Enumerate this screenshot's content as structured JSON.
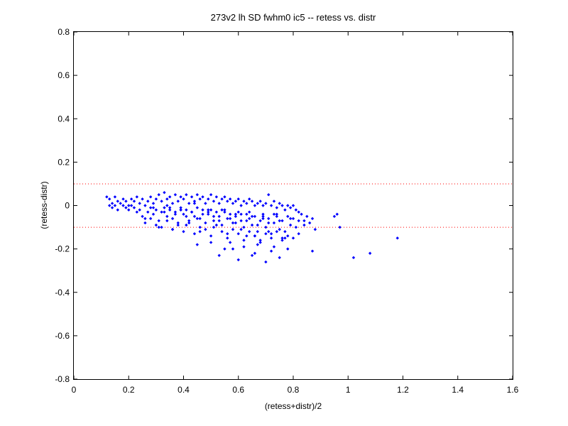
{
  "chart_data": {
    "type": "scatter",
    "title": "273v2 lh SD fwhm0 ic5 -- retess vs. distr",
    "xlabel": "(retess+distr)/2",
    "ylabel": "(retess-distr)",
    "xlim": [
      0,
      1.6
    ],
    "ylim": [
      -0.8,
      0.8
    ],
    "xticks": [
      "0",
      "0.2",
      "0.4",
      "0.6",
      "0.8",
      "1",
      "1.2",
      "1.4",
      "1.6"
    ],
    "yticks": [
      "0.8",
      "0.6",
      "0.4",
      "0.2",
      "0",
      "-0.2",
      "-0.4",
      "-0.6",
      "-0.8"
    ],
    "grid": false,
    "marker_color": "#0000ff",
    "reference_line_color": "#ff0000",
    "reference_lines": [
      0.1,
      -0.1
    ],
    "series": [
      {
        "x": [
          0.12,
          0.13,
          0.13,
          0.14,
          0.14,
          0.15,
          0.15,
          0.16,
          0.16,
          0.17,
          0.18,
          0.18,
          0.19,
          0.19,
          0.2,
          0.2,
          0.21,
          0.21,
          0.22,
          0.22,
          0.23,
          0.23,
          0.24,
          0.24,
          0.25,
          0.25,
          0.26,
          0.26,
          0.27,
          0.27,
          0.28,
          0.28,
          0.29,
          0.29,
          0.3,
          0.3,
          0.31,
          0.31,
          0.32,
          0.32,
          0.33,
          0.33,
          0.34,
          0.34,
          0.35,
          0.35,
          0.36,
          0.36,
          0.37,
          0.37,
          0.38,
          0.38,
          0.39,
          0.39,
          0.4,
          0.4,
          0.41,
          0.41,
          0.42,
          0.42,
          0.43,
          0.43,
          0.44,
          0.44,
          0.45,
          0.45,
          0.46,
          0.46,
          0.47,
          0.47,
          0.48,
          0.48,
          0.49,
          0.49,
          0.5,
          0.5,
          0.51,
          0.51,
          0.52,
          0.52,
          0.53,
          0.53,
          0.54,
          0.54,
          0.55,
          0.55,
          0.56,
          0.56,
          0.57,
          0.57,
          0.58,
          0.58,
          0.59,
          0.59,
          0.6,
          0.6,
          0.61,
          0.61,
          0.62,
          0.62,
          0.63,
          0.63,
          0.64,
          0.64,
          0.65,
          0.65,
          0.66,
          0.66,
          0.67,
          0.67,
          0.68,
          0.68,
          0.69,
          0.69,
          0.7,
          0.7,
          0.71,
          0.71,
          0.72,
          0.72,
          0.73,
          0.73,
          0.74,
          0.74,
          0.75,
          0.75,
          0.76,
          0.76,
          0.77,
          0.77,
          0.78,
          0.78,
          0.79,
          0.79,
          0.8,
          0.8,
          0.81,
          0.81,
          0.82,
          0.82,
          0.83,
          0.84,
          0.85,
          0.86,
          0.87,
          0.88,
          0.26,
          0.28,
          0.3,
          0.32,
          0.34,
          0.36,
          0.38,
          0.4,
          0.42,
          0.44,
          0.46,
          0.48,
          0.5,
          0.52,
          0.54,
          0.56,
          0.58,
          0.6,
          0.62,
          0.64,
          0.66,
          0.68,
          0.7,
          0.72,
          0.74,
          0.76,
          0.78,
          0.8,
          0.33,
          0.35,
          0.37,
          0.39,
          0.41,
          0.43,
          0.45,
          0.47,
          0.49,
          0.51,
          0.53,
          0.55,
          0.57,
          0.59,
          0.61,
          0.63,
          0.65,
          0.67,
          0.69,
          0.71,
          0.73,
          0.75,
          0.31,
          0.36,
          0.41,
          0.46,
          0.51,
          0.56,
          0.61,
          0.66,
          0.71,
          0.76,
          0.29,
          0.34,
          0.39,
          0.44,
          0.49,
          0.54,
          0.59,
          0.64,
          0.69,
          0.74,
          0.79,
          0.84,
          0.95,
          0.96,
          0.97,
          1.02,
          1.08,
          1.18,
          0.55,
          0.57,
          0.6,
          0.62,
          0.65,
          0.67,
          0.7,
          0.72,
          0.75,
          0.78,
          0.87,
          0.53,
          0.63,
          0.68,
          0.73,
          0.77,
          0.82,
          0.45,
          0.5,
          0.58,
          0.66
        ],
        "y": [
          0.04,
          0.0,
          0.03,
          0.01,
          -0.01,
          0.04,
          0.0,
          0.02,
          -0.02,
          0.01,
          0.0,
          0.03,
          -0.01,
          0.02,
          0.0,
          -0.02,
          0.03,
          0.0,
          -0.01,
          0.02,
          0.04,
          -0.03,
          0.01,
          -0.02,
          0.03,
          -0.05,
          0.0,
          -0.06,
          0.02,
          -0.03,
          0.04,
          -0.01,
          0.01,
          -0.04,
          0.03,
          -0.02,
          0.05,
          -0.07,
          0.02,
          -0.03,
          0.06,
          -0.01,
          0.03,
          -0.05,
          0.04,
          -0.02,
          0.01,
          -0.06,
          0.05,
          -0.03,
          0.02,
          -0.08,
          0.04,
          -0.01,
          0.03,
          -0.04,
          0.05,
          -0.02,
          0.01,
          -0.07,
          0.04,
          -0.03,
          0.02,
          -0.05,
          0.05,
          -0.01,
          0.03,
          -0.06,
          0.04,
          -0.02,
          0.01,
          -0.08,
          0.03,
          -0.04,
          0.05,
          -0.02,
          0.02,
          -0.07,
          0.04,
          -0.03,
          0.01,
          -0.05,
          0.03,
          -0.09,
          0.04,
          -0.02,
          0.02,
          -0.06,
          0.03,
          -0.04,
          0.01,
          -0.08,
          0.02,
          -0.05,
          0.03,
          -0.03,
          0.0,
          -0.07,
          0.02,
          -0.1,
          0.01,
          -0.04,
          0.03,
          -0.06,
          0.02,
          -0.09,
          0.0,
          -0.05,
          0.01,
          -0.12,
          0.02,
          -0.07,
          0.0,
          -0.04,
          0.01,
          -0.1,
          0.05,
          -0.06,
          0.0,
          -0.13,
          0.02,
          -0.08,
          -0.01,
          -0.05,
          0.01,
          -0.11,
          0.0,
          -0.07,
          -0.02,
          -0.12,
          0.0,
          -0.05,
          -0.01,
          -0.09,
          0.0,
          -0.06,
          -0.02,
          -0.1,
          -0.03,
          -0.07,
          -0.04,
          -0.09,
          -0.05,
          -0.08,
          -0.06,
          -0.11,
          -0.08,
          -0.06,
          -0.09,
          -0.1,
          -0.07,
          -0.11,
          -0.09,
          -0.12,
          -0.08,
          -0.13,
          -0.1,
          -0.11,
          -0.14,
          -0.09,
          -0.12,
          -0.15,
          -0.11,
          -0.13,
          -0.16,
          -0.12,
          -0.14,
          -0.17,
          -0.13,
          -0.15,
          -0.12,
          -0.16,
          -0.14,
          -0.15,
          -0.03,
          -0.01,
          -0.04,
          -0.02,
          -0.05,
          -0.03,
          -0.06,
          -0.04,
          -0.02,
          -0.05,
          -0.07,
          -0.03,
          -0.06,
          -0.08,
          -0.04,
          -0.07,
          -0.05,
          -0.09,
          -0.06,
          -0.08,
          -0.04,
          -0.07,
          -0.1,
          -0.11,
          -0.09,
          -0.12,
          -0.1,
          -0.13,
          -0.11,
          -0.14,
          -0.12,
          -0.15,
          -0.01,
          0.0,
          -0.02,
          0.01,
          -0.03,
          -0.02,
          -0.04,
          -0.03,
          -0.05,
          -0.04,
          -0.06,
          -0.07,
          -0.05,
          -0.04,
          -0.1,
          -0.24,
          -0.22,
          -0.15,
          -0.2,
          -0.17,
          -0.25,
          -0.19,
          -0.23,
          -0.18,
          -0.26,
          -0.21,
          -0.24,
          -0.2,
          -0.21,
          -0.23,
          -0.14,
          -0.16,
          -0.19,
          -0.15,
          -0.13,
          -0.18,
          -0.17,
          -0.2,
          -0.22
        ]
      }
    ]
  }
}
